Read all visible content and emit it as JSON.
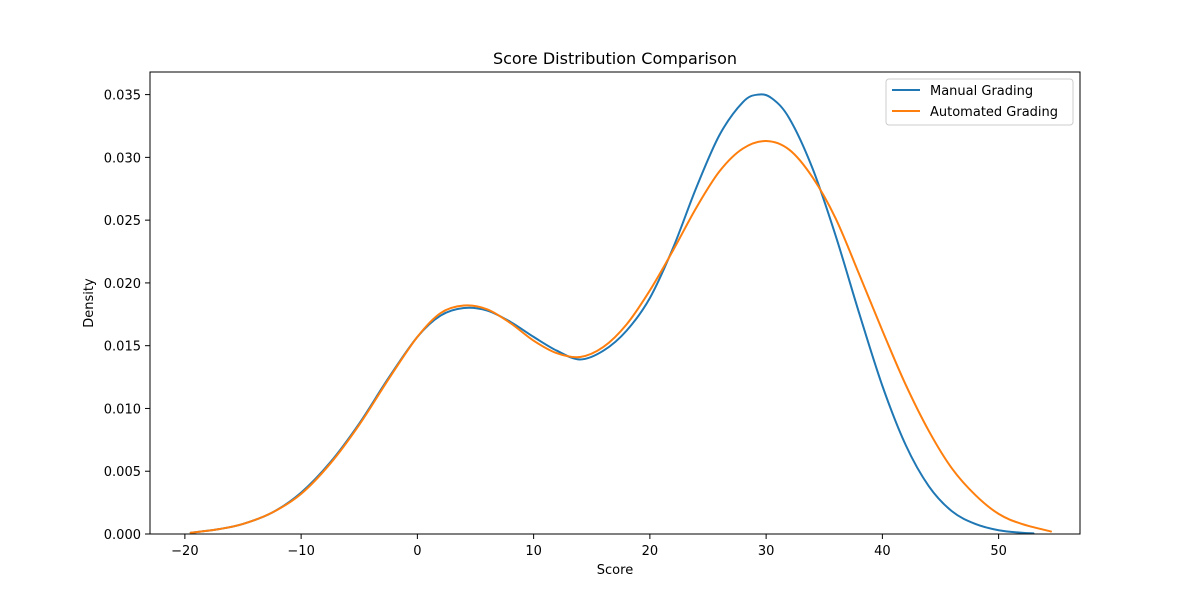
{
  "chart_data": {
    "type": "line",
    "title": "Score Distribution Comparison",
    "xlabel": "Score",
    "ylabel": "Density",
    "xlim": [
      -23,
      57
    ],
    "ylim": [
      0,
      0.0368
    ],
    "x_ticks": [
      -20,
      -10,
      0,
      10,
      20,
      30,
      40,
      50
    ],
    "x_tick_labels": [
      "−20",
      "−10",
      "0",
      "10",
      "20",
      "30",
      "40",
      "50"
    ],
    "y_ticks": [
      0,
      0.005,
      0.01,
      0.015,
      0.02,
      0.025,
      0.03,
      0.035
    ],
    "y_tick_labels": [
      "0.000",
      "0.005",
      "0.010",
      "0.015",
      "0.020",
      "0.025",
      "0.030",
      "0.035"
    ],
    "grid": false,
    "legend": "top-right",
    "series": [
      {
        "name": "Manual Grading",
        "color": "#1f77b4",
        "x": [
          -19.5,
          -17,
          -15,
          -12.5,
          -10,
          -7.5,
          -5,
          -2.5,
          0,
          2,
          4,
          6,
          8,
          10,
          12,
          14,
          16,
          18,
          20,
          22,
          24,
          26,
          28,
          29.3,
          30.5,
          32,
          34,
          36,
          38,
          40,
          42,
          44,
          46,
          48,
          50,
          52,
          53
        ],
        "y": [
          0.0001,
          0.0004,
          0.0008,
          0.0017,
          0.0033,
          0.0057,
          0.0088,
          0.0124,
          0.0157,
          0.0174,
          0.018,
          0.0178,
          0.0169,
          0.0157,
          0.0146,
          0.0139,
          0.0146,
          0.0162,
          0.0188,
          0.0228,
          0.0276,
          0.0318,
          0.0344,
          0.035,
          0.0347,
          0.0331,
          0.0291,
          0.0237,
          0.0176,
          0.0118,
          0.0071,
          0.0038,
          0.0018,
          0.0008,
          0.0003,
          0.0001,
          5e-05
        ]
      },
      {
        "name": "Automated Grading",
        "color": "#ff7f0e",
        "x": [
          -19.5,
          -17,
          -15,
          -12.5,
          -10,
          -7.5,
          -5,
          -2.5,
          0,
          2,
          4,
          6,
          8,
          10,
          12,
          14,
          16,
          18,
          20,
          22,
          24,
          26,
          28,
          30,
          32,
          34,
          36,
          38,
          40,
          42,
          44,
          46,
          48,
          50,
          52,
          54.5
        ],
        "y": [
          0.0001,
          0.0004,
          0.0008,
          0.0017,
          0.0032,
          0.0056,
          0.0087,
          0.0123,
          0.0157,
          0.0176,
          0.0182,
          0.0179,
          0.0168,
          0.0154,
          0.0144,
          0.0141,
          0.0149,
          0.0167,
          0.0194,
          0.0226,
          0.026,
          0.0289,
          0.0307,
          0.0313,
          0.0306,
          0.0284,
          0.0251,
          0.0207,
          0.0162,
          0.0119,
          0.0082,
          0.0052,
          0.0031,
          0.0016,
          0.0008,
          0.0002
        ]
      }
    ]
  }
}
